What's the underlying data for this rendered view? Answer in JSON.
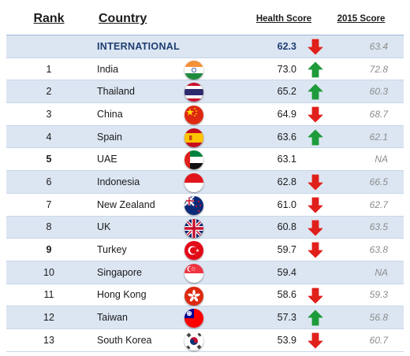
{
  "headers": {
    "rank": "Rank",
    "country": "Country",
    "health_score": "Health Score",
    "score_2015": "2015 Score"
  },
  "international": {
    "label": "INTERNATIONAL",
    "score": "62.3",
    "trend": "down",
    "prev": "63.4"
  },
  "rows": [
    {
      "rank": "1",
      "country": "India",
      "flag": "india-flag-icon",
      "score": "73.0",
      "trend": "up",
      "prev": "72.8"
    },
    {
      "rank": "2",
      "country": "Thailand",
      "flag": "thailand-flag-icon",
      "score": "65.2",
      "trend": "up",
      "prev": "60.3"
    },
    {
      "rank": "3",
      "country": "China",
      "flag": "china-flag-icon",
      "score": "64.9",
      "trend": "down",
      "prev": "68.7"
    },
    {
      "rank": "4",
      "country": "Spain",
      "flag": "spain-flag-icon",
      "score": "63.6",
      "trend": "up",
      "prev": "62.1"
    },
    {
      "rank": "5",
      "country": "UAE",
      "flag": "uae-flag-icon",
      "score": "63.1",
      "trend": "none",
      "prev": "NA"
    },
    {
      "rank": "6",
      "country": "Indonesia",
      "flag": "indonesia-flag-icon",
      "score": "62.8",
      "trend": "down",
      "prev": "66.5"
    },
    {
      "rank": "7",
      "country": "New Zealand",
      "flag": "new-zealand-flag-icon",
      "score": "61.0",
      "trend": "down",
      "prev": "62.7"
    },
    {
      "rank": "8",
      "country": "UK",
      "flag": "uk-flag-icon",
      "score": "60.8",
      "trend": "down",
      "prev": "63.5"
    },
    {
      "rank": "9",
      "country": "Turkey",
      "flag": "turkey-flag-icon",
      "score": "59.7",
      "trend": "down",
      "prev": "63.8"
    },
    {
      "rank": "10",
      "country": "Singapore",
      "flag": "singapore-flag-icon",
      "score": "59.4",
      "trend": "none",
      "prev": "NA"
    },
    {
      "rank": "11",
      "country": "Hong Kong",
      "flag": "hong-kong-flag-icon",
      "score": "58.6",
      "trend": "down",
      "prev": "59.3"
    },
    {
      "rank": "12",
      "country": "Taiwan",
      "flag": "taiwan-flag-icon",
      "score": "57.3",
      "trend": "up",
      "prev": "56.8"
    },
    {
      "rank": "13",
      "country": "South Korea",
      "flag": "south-korea-flag-icon",
      "score": "53.9",
      "trend": "down",
      "prev": "60.7"
    }
  ],
  "colors": {
    "up": "#1e9b3a",
    "down": "#e0201b",
    "shade": "#dce6f2",
    "accent_text": "#1f3f72"
  }
}
